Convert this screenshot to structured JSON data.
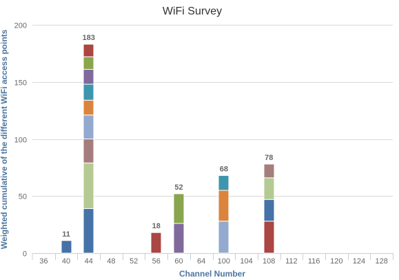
{
  "chart_data": {
    "type": "bar",
    "stacked": true,
    "title": "WiFi Survey",
    "xlabel": "Channel Number",
    "ylabel": "Weighted cumulative of the different WiFi access points",
    "ylim": [
      0,
      200
    ],
    "yticks": [
      0,
      50,
      100,
      150,
      200
    ],
    "grid": true,
    "categories": [
      "36",
      "40",
      "44",
      "48",
      "52",
      "56",
      "60",
      "64",
      "100",
      "104",
      "108",
      "112",
      "116",
      "120",
      "124",
      "128"
    ],
    "totals": [
      "",
      "11",
      "183",
      "",
      "",
      "18",
      "52",
      "",
      "68",
      "",
      "78",
      "",
      "",
      "",
      "",
      ""
    ],
    "series": [
      {
        "color": "#4572a7",
        "values": [
          0,
          11,
          39,
          0,
          0,
          0,
          0,
          0,
          0,
          0,
          0,
          0,
          0,
          0,
          0,
          0
        ]
      },
      {
        "color": "#aa4643",
        "values": [
          0,
          0,
          0,
          0,
          0,
          18,
          0,
          0,
          0,
          0,
          28,
          0,
          0,
          0,
          0,
          0
        ]
      },
      {
        "color": "#4572a7",
        "values": [
          0,
          0,
          0,
          0,
          0,
          0,
          0,
          0,
          0,
          0,
          19,
          0,
          0,
          0,
          0,
          0
        ]
      },
      {
        "color": "#b5ca92",
        "values": [
          0,
          0,
          40,
          0,
          0,
          0,
          0,
          0,
          0,
          0,
          19,
          0,
          0,
          0,
          0,
          0
        ]
      },
      {
        "color": "#a47d7c",
        "values": [
          0,
          0,
          21,
          0,
          0,
          0,
          0,
          0,
          0,
          0,
          12,
          0,
          0,
          0,
          0,
          0
        ]
      },
      {
        "color": "#80699b",
        "values": [
          0,
          0,
          0,
          0,
          0,
          0,
          26,
          0,
          0,
          0,
          0,
          0,
          0,
          0,
          0,
          0
        ]
      },
      {
        "color": "#89a54e",
        "values": [
          0,
          0,
          0,
          0,
          0,
          0,
          26,
          0,
          0,
          0,
          0,
          0,
          0,
          0,
          0,
          0
        ]
      },
      {
        "color": "#93a9cf",
        "values": [
          0,
          0,
          21,
          0,
          0,
          0,
          0,
          0,
          28,
          0,
          0,
          0,
          0,
          0,
          0,
          0
        ]
      },
      {
        "color": "#db843d",
        "values": [
          0,
          0,
          13,
          0,
          0,
          0,
          0,
          0,
          27,
          0,
          0,
          0,
          0,
          0,
          0,
          0
        ]
      },
      {
        "color": "#3d96ae",
        "values": [
          0,
          0,
          14,
          0,
          0,
          0,
          0,
          0,
          13,
          0,
          0,
          0,
          0,
          0,
          0,
          0
        ]
      },
      {
        "color": "#80699b",
        "values": [
          0,
          0,
          13,
          0,
          0,
          0,
          0,
          0,
          0,
          0,
          0,
          0,
          0,
          0,
          0,
          0
        ]
      },
      {
        "color": "#89a54e",
        "values": [
          0,
          0,
          11,
          0,
          0,
          0,
          0,
          0,
          0,
          0,
          0,
          0,
          0,
          0,
          0,
          0
        ]
      },
      {
        "color": "#aa4643",
        "values": [
          0,
          0,
          11,
          0,
          0,
          0,
          0,
          0,
          0,
          0,
          0,
          0,
          0,
          0,
          0,
          0
        ]
      }
    ]
  }
}
